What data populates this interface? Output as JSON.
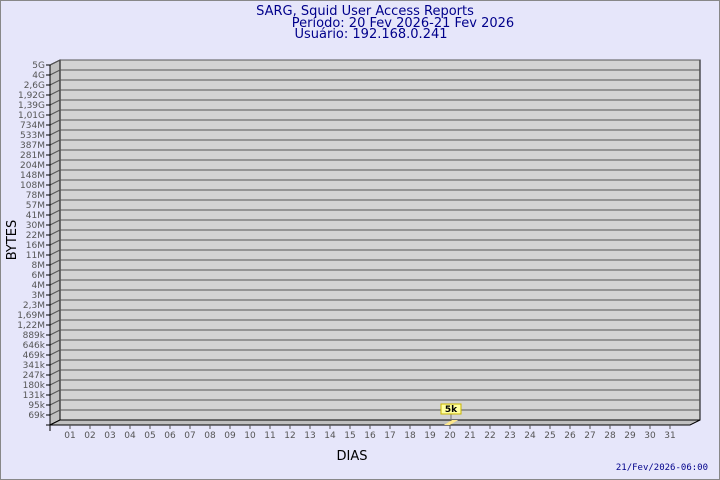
{
  "chart_data": {
    "type": "bar",
    "title": "SARG, Squid User Access Reports",
    "subtitle": [
      "Período: 20 Fev 2026-21 Fev 2026",
      "Usuário: 192.168.0.241"
    ],
    "xlabel": "DIAS",
    "ylabel": "BYTES",
    "y_scale": "log",
    "y_ticks": [
      "5G",
      "4G",
      "2,6G",
      "1,92G",
      "1,39G",
      "1,01G",
      "734M",
      "533M",
      "387M",
      "281M",
      "204M",
      "148M",
      "108M",
      "78M",
      "57M",
      "41M",
      "30M",
      "22M",
      "16M",
      "11M",
      "8M",
      "6M",
      "4M",
      "3M",
      "2,3M",
      "1,69M",
      "1,22M",
      "889k",
      "646k",
      "469k",
      "341k",
      "247k",
      "180k",
      "131k",
      "95k",
      "69k"
    ],
    "categories": [
      "01",
      "02",
      "03",
      "04",
      "05",
      "06",
      "07",
      "08",
      "09",
      "10",
      "11",
      "12",
      "13",
      "14",
      "15",
      "16",
      "17",
      "18",
      "19",
      "20",
      "21",
      "22",
      "23",
      "24",
      "25",
      "26",
      "27",
      "28",
      "29",
      "30",
      "31"
    ],
    "bars": [
      {
        "x": "20",
        "value": 5000,
        "label": "5k"
      }
    ],
    "grid": true,
    "colors": {
      "background": "#e6e6fa",
      "plot": "#d3d3d3",
      "bar": "#ffe88c",
      "label_box": "#ffffa0",
      "title": "#00008b"
    },
    "footer": "21/Fev/2026-06:00"
  }
}
